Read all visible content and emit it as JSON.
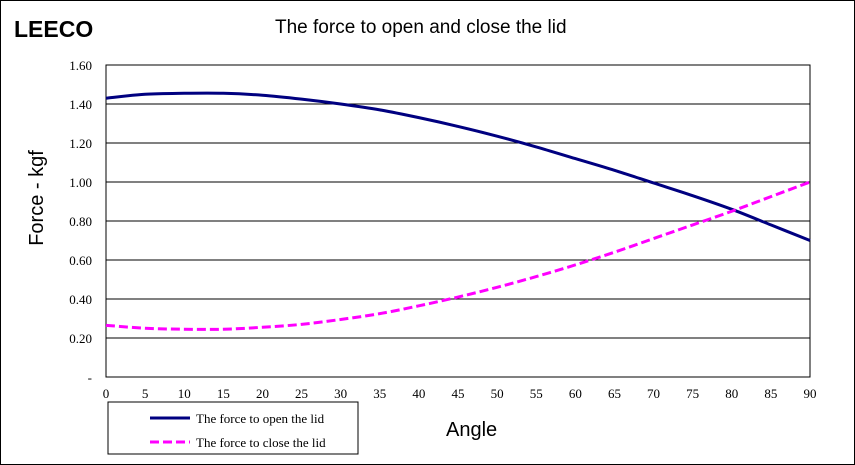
{
  "brand": "LEECO",
  "chart_data": {
    "type": "line",
    "title": "The force to open and close the lid",
    "xlabel": "Angle",
    "ylabel": "Force - kgf",
    "xlim": [
      0,
      90
    ],
    "ylim": [
      0,
      1.6
    ],
    "x_ticks": [
      "0",
      "5",
      "10",
      "15",
      "20",
      "25",
      "30",
      "35",
      "40",
      "45",
      "50",
      "55",
      "60",
      "65",
      "70",
      "75",
      "80",
      "85",
      "90"
    ],
    "y_ticks": [
      "-",
      "0.20",
      "0.40",
      "0.60",
      "0.80",
      "1.00",
      "1.20",
      "1.40",
      "1.60"
    ],
    "grid": "horizontal",
    "legend_position": "bottom-left",
    "x": [
      0,
      5,
      10,
      15,
      20,
      25,
      30,
      35,
      40,
      45,
      50,
      55,
      60,
      65,
      70,
      75,
      80,
      85,
      90
    ],
    "series": [
      {
        "name": "The force to open the lid",
        "color": "#000080",
        "style": "solid",
        "values": [
          1.43,
          1.45,
          1.455,
          1.455,
          1.445,
          1.425,
          1.4,
          1.37,
          1.33,
          1.285,
          1.235,
          1.18,
          1.12,
          1.06,
          0.995,
          0.93,
          0.86,
          0.78,
          0.7
        ]
      },
      {
        "name": "The force to close the lid",
        "color": "#ff00ff",
        "style": "dashed",
        "values": [
          0.265,
          0.25,
          0.245,
          0.245,
          0.255,
          0.27,
          0.295,
          0.325,
          0.365,
          0.41,
          0.46,
          0.515,
          0.575,
          0.64,
          0.71,
          0.78,
          0.85,
          0.925,
          1.0
        ]
      }
    ]
  }
}
